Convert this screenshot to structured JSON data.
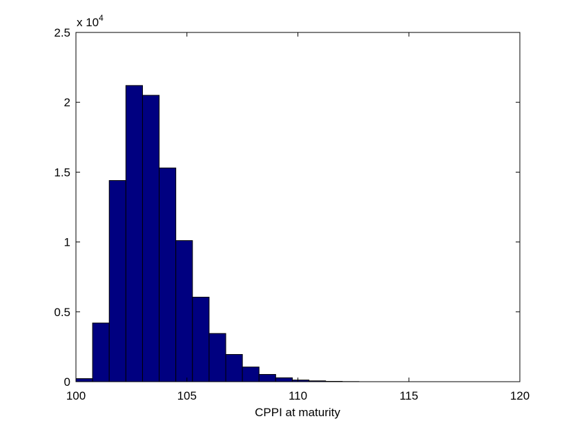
{
  "chart_data": {
    "type": "bar",
    "xlabel": "CPPI at maturity",
    "ylabel": "",
    "title": "",
    "xlim": [
      100,
      120
    ],
    "ylim": [
      0,
      25000
    ],
    "xticks": [
      100,
      105,
      110,
      115,
      120
    ],
    "yticks": [
      0,
      0.5,
      1,
      1.5,
      2,
      2.5
    ],
    "ytick_labels": [
      "0",
      "0.5",
      "1",
      "1.5",
      "2",
      "2.5"
    ],
    "y_multiplier_base": "x 10",
    "y_multiplier_exponent": "4",
    "bin_width": 0.75,
    "bin_start": 100.0,
    "values": [
      220,
      4200,
      14400,
      21200,
      20500,
      15300,
      10100,
      6050,
      3450,
      1950,
      1050,
      520,
      280,
      120,
      60,
      25,
      10,
      0,
      0,
      0,
      0,
      0,
      0,
      0,
      0,
      0
    ],
    "bar_color": "#000080",
    "grid": false,
    "legend": "none"
  }
}
